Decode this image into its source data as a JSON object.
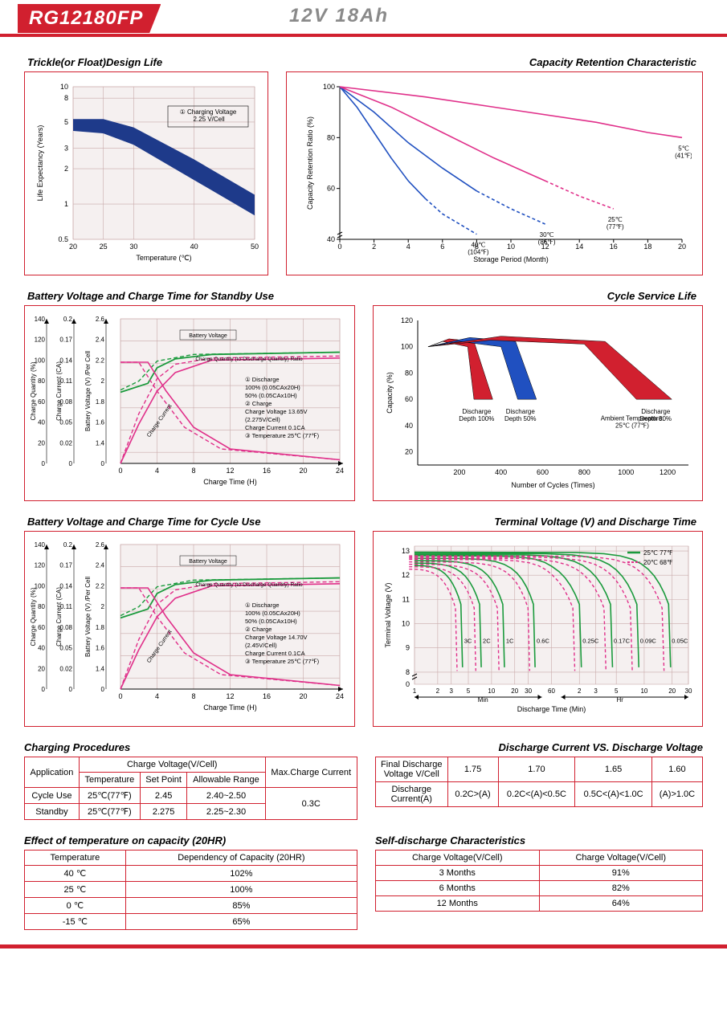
{
  "header": {
    "model": "RG12180FP",
    "spec": "12V  18Ah"
  },
  "colors": {
    "red": "#d1202f",
    "navy": "#1e3a8a",
    "blue": "#2050c0",
    "magenta": "#e0308a",
    "green": "#1a9a3c",
    "grid_bg": "#f5f0f0",
    "grid_line": "#c9aaaa",
    "black": "#000"
  },
  "chart1": {
    "title": "Trickle(or Float)Design Life",
    "xlabel": "Temperature (℃)",
    "ylabel": "Life Expectancy (Years)",
    "xticks": [
      20,
      25,
      30,
      40,
      50
    ],
    "yticks": [
      0.5,
      1,
      2,
      3,
      5,
      8,
      10
    ],
    "legend": "① Charging Voltage\n    2.25 V/Cell",
    "band_upper": [
      [
        20,
        5.3
      ],
      [
        25,
        5.3
      ],
      [
        30,
        4.5
      ],
      [
        40,
        2.4
      ],
      [
        50,
        1.2
      ]
    ],
    "band_lower": [
      [
        20,
        4.2
      ],
      [
        25,
        4.0
      ],
      [
        30,
        3.2
      ],
      [
        40,
        1.6
      ],
      [
        50,
        0.8
      ]
    ],
    "band_color": "#1e3a8a"
  },
  "chart2": {
    "title": "Capacity Retention Characteristic",
    "xlabel": "Storage Period (Month)",
    "ylabel": "Capacity Retention Ratio (%)",
    "xticks": [
      0,
      2,
      4,
      6,
      8,
      10,
      12,
      14,
      16,
      18,
      20
    ],
    "yticks": [
      40,
      60,
      80,
      100
    ],
    "curves": [
      {
        "label": "40℃\n(104℉)",
        "color": "#2050c0",
        "dash_after": 0.6,
        "pts": [
          [
            0,
            100
          ],
          [
            1,
            92
          ],
          [
            2,
            82
          ],
          [
            3,
            72
          ],
          [
            4,
            63
          ],
          [
            5,
            56
          ],
          [
            6,
            50
          ],
          [
            7,
            46
          ],
          [
            8,
            42
          ]
        ]
      },
      {
        "label": "30℃\n(86℉)",
        "color": "#2050c0",
        "dash_after": 0.6,
        "pts": [
          [
            0,
            100
          ],
          [
            2,
            90
          ],
          [
            4,
            78
          ],
          [
            6,
            68
          ],
          [
            8,
            59
          ],
          [
            10,
            52
          ],
          [
            12,
            46
          ]
        ]
      },
      {
        "label": "25℃\n(77℉)",
        "color": "#e0308a",
        "dash_after": 0.6,
        "pts": [
          [
            0,
            100
          ],
          [
            3,
            92
          ],
          [
            6,
            82
          ],
          [
            9,
            72
          ],
          [
            12,
            63
          ],
          [
            14,
            57
          ],
          [
            16,
            52
          ]
        ]
      },
      {
        "label": "5℃\n(41℉)",
        "color": "#e0308a",
        "dash_after": 1.0,
        "pts": [
          [
            0,
            100
          ],
          [
            5,
            96
          ],
          [
            10,
            91
          ],
          [
            15,
            86
          ],
          [
            18,
            82
          ],
          [
            20,
            80
          ]
        ]
      }
    ]
  },
  "chart3": {
    "title": "Battery Voltage and Charge Time for Standby Use",
    "xlabel": "Charge Time (H)",
    "ylabels": [
      "Charge Quantity (%)",
      "Charge Current (CA)",
      "Battery Voltage (V) /Per Cell"
    ],
    "xticks": [
      0,
      4,
      8,
      12,
      16,
      20,
      24
    ],
    "y1ticks": [
      0,
      20,
      40,
      60,
      80,
      100,
      120,
      140
    ],
    "y2ticks": [
      0,
      0.02,
      0.05,
      0.08,
      0.11,
      0.14,
      0.17,
      0.2
    ],
    "y3ticks": [
      0,
      1.4,
      1.6,
      1.8,
      2.0,
      2.2,
      2.4,
      2.6
    ],
    "annot": [
      "① Discharge",
      "   100% (0.05CAx20H)",
      "   50% (0.05CAx10H)",
      "② Charge",
      "   Charge Voltage 13.65V",
      "   (2.275V/Cell)",
      "   Charge Current 0.1CA",
      "③ Temperature 25℃ (77℉)"
    ],
    "labels": [
      "Battery Voltage",
      "Charge Quantity (to-Discharge Quantity) Ratio",
      "Charge Current"
    ],
    "green_solid": [
      [
        0,
        1.94
      ],
      [
        3,
        2.02
      ],
      [
        4,
        2.16
      ],
      [
        6,
        2.24
      ],
      [
        10,
        2.28
      ],
      [
        24,
        2.3
      ]
    ],
    "green_dash": [
      [
        0,
        1.96
      ],
      [
        2,
        2.04
      ],
      [
        4,
        2.22
      ],
      [
        8,
        2.28
      ],
      [
        24,
        2.3
      ]
    ],
    "pink_solid_cq": [
      [
        0,
        0
      ],
      [
        2,
        38
      ],
      [
        4,
        70
      ],
      [
        6,
        88
      ],
      [
        10,
        100
      ],
      [
        24,
        102
      ]
    ],
    "pink_dash_cq": [
      [
        0,
        0
      ],
      [
        2,
        48
      ],
      [
        4,
        82
      ],
      [
        6,
        96
      ],
      [
        10,
        102
      ],
      [
        24,
        104
      ]
    ],
    "pink_solid_cc": [
      [
        0,
        0.14
      ],
      [
        3,
        0.14
      ],
      [
        5,
        0.1
      ],
      [
        8,
        0.05
      ],
      [
        12,
        0.02
      ],
      [
        24,
        0.005
      ]
    ],
    "pink_dash_cc": [
      [
        0,
        0.14
      ],
      [
        2,
        0.14
      ],
      [
        4,
        0.1
      ],
      [
        7,
        0.05
      ],
      [
        11,
        0.02
      ],
      [
        24,
        0.005
      ]
    ]
  },
  "chart4": {
    "title": "Cycle Service Life",
    "xlabel": "Number of Cycles (Times)",
    "ylabel": "Capacity (%)",
    "xticks": [
      200,
      400,
      600,
      800,
      1000,
      1200
    ],
    "yticks": [
      20,
      40,
      60,
      80,
      100,
      120
    ],
    "ambient": "Ambient Temperature:\n25℃ (77℉)",
    "bands": [
      {
        "label": "Discharge\nDepth 100%",
        "color": "#d1202f",
        "upper": [
          [
            50,
            100
          ],
          [
            150,
            106
          ],
          [
            270,
            104
          ],
          [
            360,
            60
          ]
        ],
        "lower": [
          [
            50,
            100
          ],
          [
            120,
            104
          ],
          [
            240,
            100
          ],
          [
            270,
            60
          ]
        ]
      },
      {
        "label": "Discharge\nDepth 50%",
        "color": "#2050c0",
        "upper": [
          [
            50,
            100
          ],
          [
            250,
            107
          ],
          [
            470,
            104
          ],
          [
            570,
            60
          ]
        ],
        "lower": [
          [
            50,
            100
          ],
          [
            200,
            104
          ],
          [
            400,
            100
          ],
          [
            480,
            60
          ]
        ]
      },
      {
        "label": "Discharge\nDepth 30%",
        "color": "#d1202f",
        "upper": [
          [
            50,
            100
          ],
          [
            400,
            108
          ],
          [
            900,
            104
          ],
          [
            1220,
            60
          ]
        ],
        "lower": [
          [
            50,
            100
          ],
          [
            350,
            105
          ],
          [
            800,
            102
          ],
          [
            1050,
            60
          ]
        ]
      }
    ]
  },
  "chart5": {
    "title": "Battery Voltage and Charge Time for Cycle Use",
    "annot": [
      "① Discharge",
      "   100% (0.05CAx20H)",
      "   50% (0.05CAx10H)",
      "② Charge",
      "   Charge Voltage 14.70V",
      "   (2.45V/Cell)",
      "   Charge Current 0.1CA",
      "③ Temperature 25℃ (77℉)"
    ]
  },
  "chart6": {
    "title": "Terminal Voltage (V) and Discharge Time",
    "xlabel": "Discharge Time (Min)",
    "ylabel": "Terminal Voltage (V)",
    "yticks": [
      0,
      8,
      9,
      10,
      11,
      12,
      13
    ],
    "legend": [
      {
        "label": "25℃ 77℉",
        "color": "#1a9a3c"
      },
      {
        "label": "20℃ 68℉",
        "color": "#e0308a"
      }
    ],
    "rates": [
      "3C",
      "2C",
      "1C",
      "0.6C",
      "0.25C",
      "0.17C",
      "0.09C",
      "0.05C"
    ],
    "xsections": [
      "Min",
      "Hr"
    ]
  },
  "table1": {
    "title": "Charging Procedures",
    "headers": [
      "Application",
      "Charge Voltage(V/Cell)",
      "Max.Charge Current"
    ],
    "subheaders": [
      "Temperature",
      "Set Point",
      "Allowable Range"
    ],
    "rows": [
      [
        "Cycle Use",
        "25℃(77℉)",
        "2.45",
        "2.40~2.50"
      ],
      [
        "Standby",
        "25℃(77℉)",
        "2.275",
        "2.25~2.30"
      ]
    ],
    "maxcurrent": "0.3C"
  },
  "table2": {
    "title": "Discharge Current VS. Discharge Voltage",
    "row1": [
      "Final Discharge Voltage V/Cell",
      "1.75",
      "1.70",
      "1.65",
      "1.60"
    ],
    "row2": [
      "Discharge Current(A)",
      "0.2C>(A)",
      "0.2C<(A)<0.5C",
      "0.5C<(A)<1.0C",
      "(A)>1.0C"
    ]
  },
  "table3": {
    "title": "Effect of temperature on capacity (20HR)",
    "headers": [
      "Temperature",
      "Dependency of Capacity (20HR)"
    ],
    "rows": [
      [
        "40 ℃",
        "102%"
      ],
      [
        "25 ℃",
        "100%"
      ],
      [
        "0 ℃",
        "85%"
      ],
      [
        "-15 ℃",
        "65%"
      ]
    ]
  },
  "table4": {
    "title": "Self-discharge Characteristics",
    "headers": [
      "Charge Voltage(V/Cell)",
      "Charge Voltage(V/Cell)"
    ],
    "rows": [
      [
        "3 Months",
        "91%"
      ],
      [
        "6 Months",
        "82%"
      ],
      [
        "12 Months",
        "64%"
      ]
    ]
  }
}
